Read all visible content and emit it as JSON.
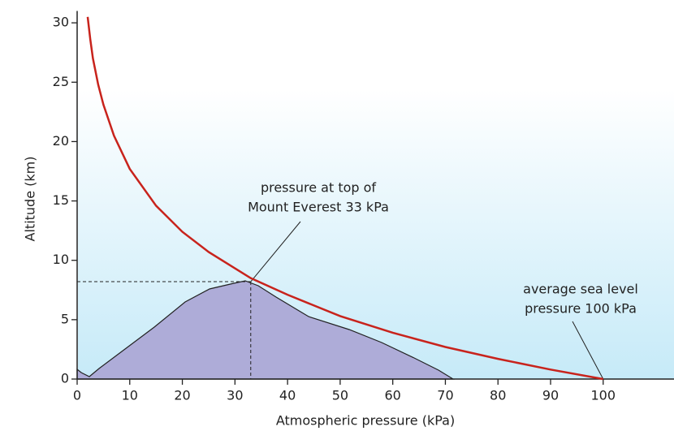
{
  "chart_data": {
    "type": "line",
    "x_label": "Atmospheric pressure (kPa)",
    "y_label": "Altitude (km)",
    "x": [
      2,
      2.5,
      3,
      4,
      5,
      7,
      10,
      15,
      20,
      25,
      33,
      40,
      50,
      60,
      70,
      80,
      90,
      100
    ],
    "series": [
      {
        "color": "#c8231c",
        "values": [
          30.5,
          28.6,
          27,
          24.8,
          23.1,
          20.5,
          17.7,
          14.6,
          12.4,
          10.7,
          8.5,
          7.1,
          5.3,
          3.9,
          2.7,
          1.7,
          0.8,
          0
        ]
      }
    ],
    "xlim": [
      0,
      113
    ],
    "ylim": [
      0,
      31
    ],
    "xticks": [
      0,
      10,
      20,
      30,
      40,
      50,
      60,
      70,
      80,
      90,
      100
    ],
    "yticks": [
      0,
      5,
      10,
      15,
      20,
      25,
      30
    ],
    "annotations": [
      {
        "lines": [
          "pressure at top of",
          "Mount Everest 33 kPa"
        ],
        "x": 33,
        "y": 8.2,
        "guides": true
      },
      {
        "lines": [
          "average sea level",
          "pressure 100 kPa"
        ],
        "x": 100,
        "y": 0,
        "guides": false
      }
    ]
  }
}
